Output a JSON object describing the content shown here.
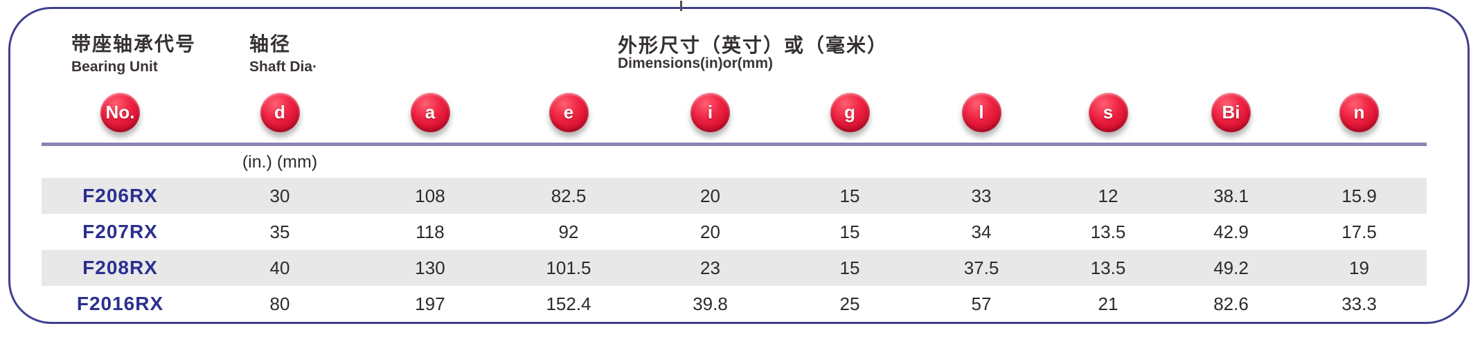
{
  "colors": {
    "border": "#3f3f90",
    "rule": "#8982b2",
    "stripe": "#e9e8e9",
    "badge_red": "#dd1535",
    "bearing_name": "#2a2f8f"
  },
  "header": {
    "bearing_unit_zh": "带座轴承代号",
    "bearing_unit_en": "Bearing Unit",
    "shaft_dia_zh": "轴径",
    "shaft_dia_en": "Shaft Dia·",
    "dimensions_zh": "外形尺寸（英寸）或（毫米）",
    "dimensions_en": "Dimensions(in)or(mm)",
    "unit_note": "(in.) (mm)"
  },
  "columns": [
    "No.",
    "d",
    "a",
    "e",
    "i",
    "g",
    "l",
    "s",
    "Bi",
    "n"
  ],
  "table": {
    "rows": [
      {
        "name": "F206RX",
        "values": [
          "30",
          "108",
          "82.5",
          "20",
          "15",
          "33",
          "12",
          "38.1",
          "15.9"
        ]
      },
      {
        "name": "F207RX",
        "values": [
          "35",
          "118",
          "92",
          "20",
          "15",
          "34",
          "13.5",
          "42.9",
          "17.5"
        ]
      },
      {
        "name": "F208RX",
        "values": [
          "40",
          "130",
          "101.5",
          "23",
          "15",
          "37.5",
          "13.5",
          "49.2",
          "19"
        ]
      },
      {
        "name": "F2016RX",
        "values": [
          "80",
          "197",
          "152.4",
          "39.8",
          "25",
          "57",
          "21",
          "82.6",
          "33.3"
        ]
      }
    ]
  }
}
